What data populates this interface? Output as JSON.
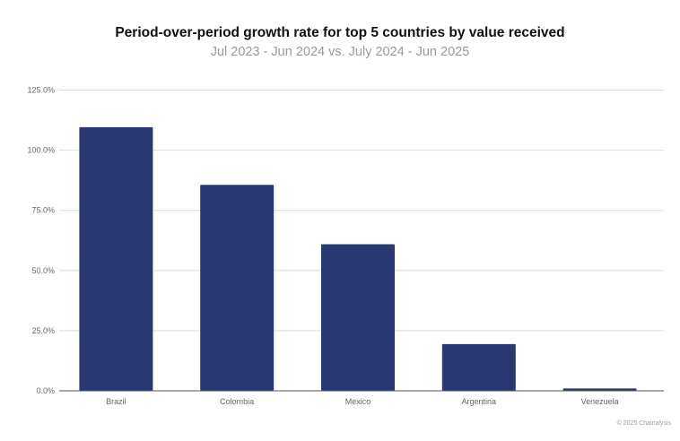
{
  "chart_data": {
    "type": "bar",
    "title": "Period-over-period growth rate for top 5 countries by value received",
    "subtitle": "Jul 2023 - Jun 2024 vs. July 2024 - Jun 2025",
    "categories": [
      "Brazil",
      "Colombia",
      "Mexico",
      "Argentina",
      "Venezuela"
    ],
    "values": [
      109.6,
      85.6,
      60.9,
      19.4,
      1.0
    ],
    "ylim": [
      0,
      125
    ],
    "yticks": [
      0,
      25,
      50,
      75,
      100,
      125
    ],
    "ytick_labels": [
      "0.0%",
      "25.0%",
      "50.0%",
      "75.0%",
      "100.0%",
      "125.0%"
    ],
    "xlabel": "",
    "ylabel": "",
    "grid": true,
    "bar_color": "#293870"
  },
  "credit": "© 2025 Chainalysis"
}
